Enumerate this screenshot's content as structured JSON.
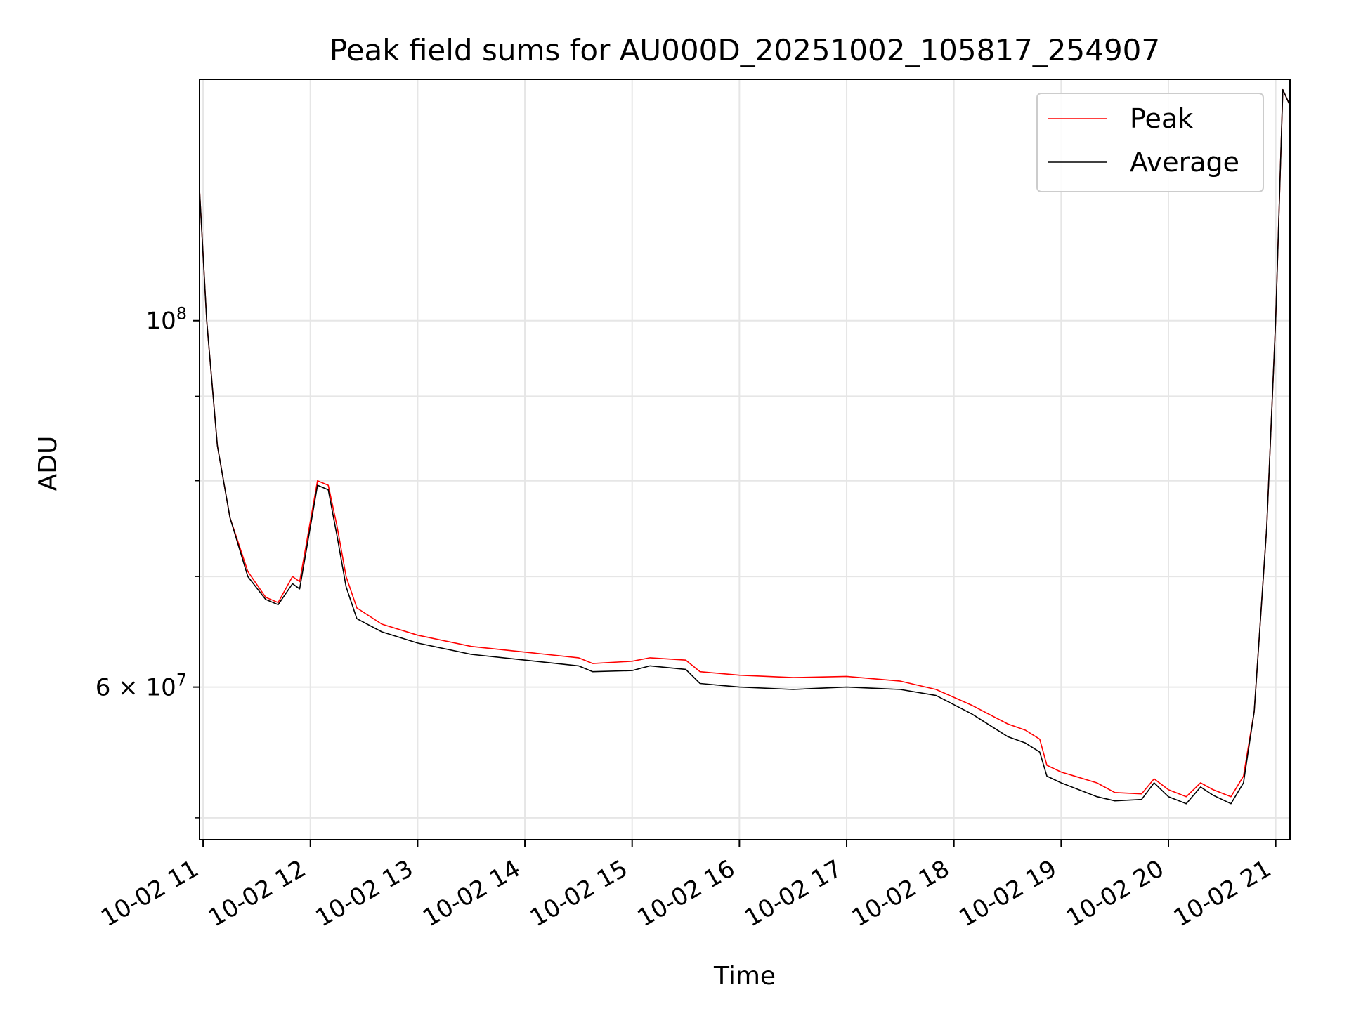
{
  "chart_data": {
    "type": "line",
    "title": "Peak field sums for AU000D_20251002_105817_254907",
    "xlabel": "Time",
    "ylabel": "ADU",
    "yscale": "log",
    "xlim": [
      "2025-10-02T10:58",
      "2025-10-02T21:08"
    ],
    "ylim": [
      48500000,
      140000000
    ],
    "grid": true,
    "legend": "upper right",
    "x_ticks": [
      {
        "t": "2025-10-02T11:00",
        "label": "10-02 11"
      },
      {
        "t": "2025-10-02T12:00",
        "label": "10-02 12"
      },
      {
        "t": "2025-10-02T13:00",
        "label": "10-02 13"
      },
      {
        "t": "2025-10-02T14:00",
        "label": "10-02 14"
      },
      {
        "t": "2025-10-02T15:00",
        "label": "10-02 15"
      },
      {
        "t": "2025-10-02T16:00",
        "label": "10-02 16"
      },
      {
        "t": "2025-10-02T17:00",
        "label": "10-02 17"
      },
      {
        "t": "2025-10-02T18:00",
        "label": "10-02 18"
      },
      {
        "t": "2025-10-02T19:00",
        "label": "10-02 19"
      },
      {
        "t": "2025-10-02T20:00",
        "label": "10-02 20"
      },
      {
        "t": "2025-10-02T21:00",
        "label": "10-02 21"
      }
    ],
    "y_major_ticks": [
      {
        "value": 100000000,
        "base": "10",
        "exp": "8"
      },
      {
        "value": 60000000,
        "base": "6 × 10",
        "exp": "7"
      }
    ],
    "y_minor_ticks": [
      50000000,
      70000000,
      80000000,
      90000000
    ],
    "series": [
      {
        "name": "Peak",
        "color": "#ff0000",
        "points": [
          [
            "2025-10-02T10:58",
            120000000
          ],
          [
            "2025-10-02T11:02",
            100000000
          ],
          [
            "2025-10-02T11:08",
            84000000
          ],
          [
            "2025-10-02T11:15",
            76000000
          ],
          [
            "2025-10-02T11:25",
            70500000
          ],
          [
            "2025-10-02T11:35",
            68000000
          ],
          [
            "2025-10-02T11:42",
            67500000
          ],
          [
            "2025-10-02T11:50",
            70000000
          ],
          [
            "2025-10-02T11:54",
            69500000
          ],
          [
            "2025-10-02T12:04",
            80000000
          ],
          [
            "2025-10-02T12:10",
            79500000
          ],
          [
            "2025-10-02T12:15",
            75000000
          ],
          [
            "2025-10-02T12:20",
            70000000
          ],
          [
            "2025-10-02T12:26",
            67000000
          ],
          [
            "2025-10-02T12:40",
            65500000
          ],
          [
            "2025-10-02T13:00",
            64500000
          ],
          [
            "2025-10-02T13:30",
            63500000
          ],
          [
            "2025-10-02T14:00",
            63000000
          ],
          [
            "2025-10-02T14:30",
            62500000
          ],
          [
            "2025-10-02T14:38",
            62000000
          ],
          [
            "2025-10-02T15:00",
            62200000
          ],
          [
            "2025-10-02T15:10",
            62500000
          ],
          [
            "2025-10-02T15:30",
            62300000
          ],
          [
            "2025-10-02T15:38",
            61300000
          ],
          [
            "2025-10-02T16:00",
            61000000
          ],
          [
            "2025-10-02T16:30",
            60800000
          ],
          [
            "2025-10-02T17:00",
            60900000
          ],
          [
            "2025-10-02T17:30",
            60500000
          ],
          [
            "2025-10-02T17:50",
            59800000
          ],
          [
            "2025-10-02T18:10",
            58500000
          ],
          [
            "2025-10-02T18:30",
            57000000
          ],
          [
            "2025-10-02T18:40",
            56500000
          ],
          [
            "2025-10-02T18:48",
            55800000
          ],
          [
            "2025-10-02T18:52",
            53800000
          ],
          [
            "2025-10-02T19:00",
            53300000
          ],
          [
            "2025-10-02T19:20",
            52500000
          ],
          [
            "2025-10-02T19:30",
            51800000
          ],
          [
            "2025-10-02T19:45",
            51700000
          ],
          [
            "2025-10-02T19:52",
            52800000
          ],
          [
            "2025-10-02T20:00",
            52000000
          ],
          [
            "2025-10-02T20:10",
            51500000
          ],
          [
            "2025-10-02T20:18",
            52500000
          ],
          [
            "2025-10-02T20:25",
            52000000
          ],
          [
            "2025-10-02T20:35",
            51500000
          ],
          [
            "2025-10-02T20:42",
            53000000
          ],
          [
            "2025-10-02T20:48",
            58000000
          ],
          [
            "2025-10-02T20:55",
            75000000
          ],
          [
            "2025-10-02T21:00",
            100000000
          ],
          [
            "2025-10-02T21:04",
            138000000
          ],
          [
            "2025-10-02T21:08",
            135000000
          ]
        ]
      },
      {
        "name": "Average",
        "color": "#000000",
        "points": [
          [
            "2025-10-02T10:58",
            120000000
          ],
          [
            "2025-10-02T11:02",
            100000000
          ],
          [
            "2025-10-02T11:08",
            84000000
          ],
          [
            "2025-10-02T11:15",
            76000000
          ],
          [
            "2025-10-02T11:25",
            70000000
          ],
          [
            "2025-10-02T11:35",
            67800000
          ],
          [
            "2025-10-02T11:42",
            67300000
          ],
          [
            "2025-10-02T11:50",
            69300000
          ],
          [
            "2025-10-02T11:54",
            68800000
          ],
          [
            "2025-10-02T12:04",
            79500000
          ],
          [
            "2025-10-02T12:10",
            79000000
          ],
          [
            "2025-10-02T12:15",
            74000000
          ],
          [
            "2025-10-02T12:20",
            69000000
          ],
          [
            "2025-10-02T12:26",
            66000000
          ],
          [
            "2025-10-02T12:40",
            64800000
          ],
          [
            "2025-10-02T13:00",
            63800000
          ],
          [
            "2025-10-02T13:30",
            62800000
          ],
          [
            "2025-10-02T14:00",
            62300000
          ],
          [
            "2025-10-02T14:30",
            61800000
          ],
          [
            "2025-10-02T14:38",
            61300000
          ],
          [
            "2025-10-02T15:00",
            61400000
          ],
          [
            "2025-10-02T15:10",
            61800000
          ],
          [
            "2025-10-02T15:30",
            61500000
          ],
          [
            "2025-10-02T15:38",
            60300000
          ],
          [
            "2025-10-02T16:00",
            60000000
          ],
          [
            "2025-10-02T16:30",
            59800000
          ],
          [
            "2025-10-02T17:00",
            60000000
          ],
          [
            "2025-10-02T17:30",
            59800000
          ],
          [
            "2025-10-02T17:50",
            59300000
          ],
          [
            "2025-10-02T18:10",
            57800000
          ],
          [
            "2025-10-02T18:30",
            56000000
          ],
          [
            "2025-10-02T18:40",
            55500000
          ],
          [
            "2025-10-02T18:48",
            54800000
          ],
          [
            "2025-10-02T18:52",
            53000000
          ],
          [
            "2025-10-02T19:00",
            52500000
          ],
          [
            "2025-10-02T19:20",
            51500000
          ],
          [
            "2025-10-02T19:30",
            51200000
          ],
          [
            "2025-10-02T19:45",
            51300000
          ],
          [
            "2025-10-02T19:52",
            52500000
          ],
          [
            "2025-10-02T20:00",
            51500000
          ],
          [
            "2025-10-02T20:10",
            51000000
          ],
          [
            "2025-10-02T20:18",
            52200000
          ],
          [
            "2025-10-02T20:25",
            51600000
          ],
          [
            "2025-10-02T20:35",
            51000000
          ],
          [
            "2025-10-02T20:42",
            52500000
          ],
          [
            "2025-10-02T20:48",
            58000000
          ],
          [
            "2025-10-02T20:55",
            75000000
          ],
          [
            "2025-10-02T21:00",
            100000000
          ],
          [
            "2025-10-02T21:04",
            138000000
          ],
          [
            "2025-10-02T21:08",
            135000000
          ]
        ]
      }
    ]
  }
}
